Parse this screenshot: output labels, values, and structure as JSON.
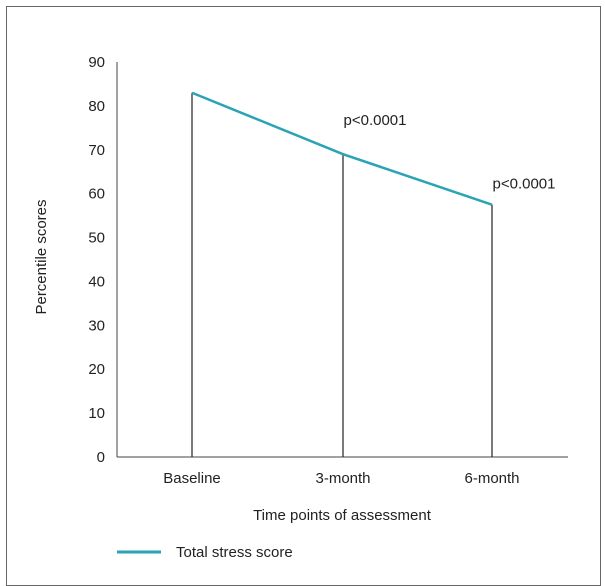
{
  "chart_data": {
    "type": "line",
    "title": "",
    "xlabel": "Time points of assessment",
    "ylabel": "Percentile scores",
    "categories": [
      "Baseline",
      "3-month",
      "6-month"
    ],
    "ylim": [
      0,
      90
    ],
    "yticks": [
      0,
      10,
      20,
      30,
      40,
      50,
      60,
      70,
      80,
      90
    ],
    "series": [
      {
        "name": "Total stress score",
        "values": [
          83,
          69,
          57.5
        ],
        "color": "#2aa3b5"
      }
    ],
    "annotations": [
      {
        "category": "3-month",
        "text": "p<0.0001"
      },
      {
        "category": "6-month",
        "text": "p<0.0001"
      }
    ],
    "drop_lines": true,
    "grid": false,
    "legend_position": "bottom-left"
  }
}
